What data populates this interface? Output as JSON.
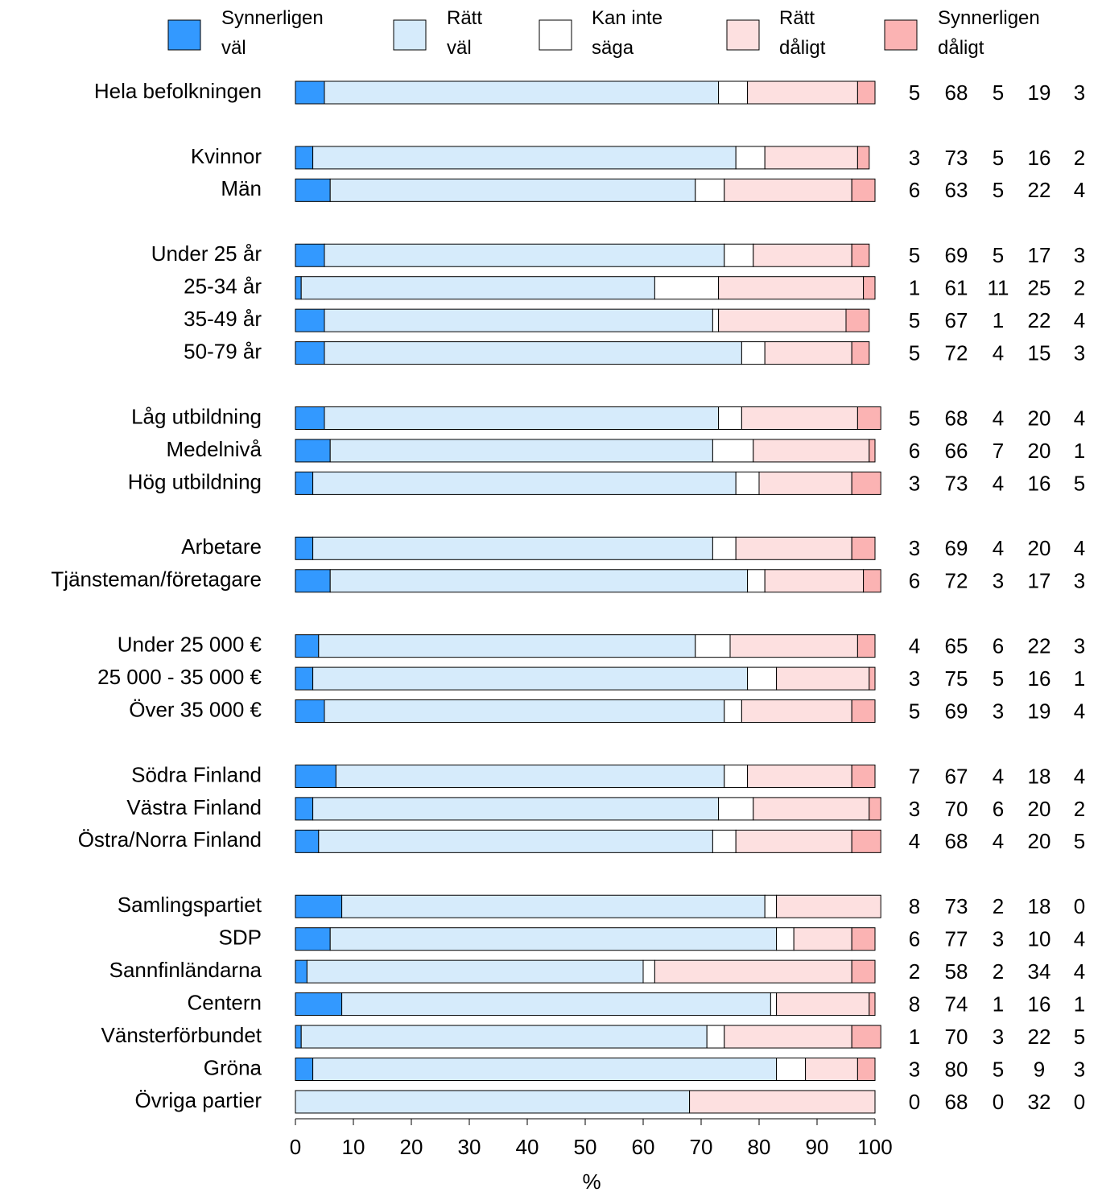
{
  "chart_data": {
    "type": "stacked-bar-horizontal",
    "categories": [
      "Hela befolkningen",
      null,
      "Kvinnor",
      "Män",
      null,
      "Under 25 år",
      "25-34 år",
      "35-49 år",
      "50-79 år",
      null,
      "Låg utbildning",
      "Medelnivå",
      "Hög utbildning",
      null,
      "Arbetare",
      "Tjänsteman/företagare",
      null,
      "Under 25 000 €",
      "25 000 - 35 000 €",
      "Över 35 000 €",
      null,
      "Södra Finland",
      "Västra Finland",
      "Östra/Norra Finland",
      null,
      "Samlingspartiet",
      "SDP",
      "Sannfinländarna",
      "Centern",
      "Vänsterförbundet",
      "Gröna",
      "Övriga partier"
    ],
    "series": [
      {
        "name": "Synnerligen väl",
        "color": "#3399ff",
        "values": [
          5,
          null,
          3,
          6,
          null,
          5,
          1,
          5,
          5,
          null,
          5,
          6,
          3,
          null,
          3,
          6,
          null,
          4,
          3,
          5,
          null,
          7,
          3,
          4,
          null,
          8,
          6,
          2,
          8,
          1,
          3,
          0
        ]
      },
      {
        "name": "Rätt väl",
        "color": "#d6ebfb",
        "values": [
          68,
          null,
          73,
          63,
          null,
          69,
          61,
          67,
          72,
          null,
          68,
          66,
          73,
          null,
          69,
          72,
          null,
          65,
          75,
          69,
          null,
          67,
          70,
          68,
          null,
          73,
          77,
          58,
          74,
          70,
          80,
          68
        ]
      },
      {
        "name": "Kan inte säga",
        "color": "#ffffff",
        "values": [
          5,
          null,
          5,
          5,
          null,
          5,
          11,
          1,
          4,
          null,
          4,
          7,
          4,
          null,
          4,
          3,
          null,
          6,
          5,
          3,
          null,
          4,
          6,
          4,
          null,
          2,
          3,
          2,
          1,
          3,
          5,
          0
        ]
      },
      {
        "name": "Rätt dåligt",
        "color": "#fde0e0",
        "values": [
          19,
          null,
          16,
          22,
          null,
          17,
          25,
          22,
          15,
          null,
          20,
          20,
          16,
          null,
          20,
          17,
          null,
          22,
          16,
          19,
          null,
          18,
          20,
          20,
          null,
          18,
          10,
          34,
          16,
          22,
          9,
          32
        ]
      },
      {
        "name": "Synnerligen dåligt",
        "color": "#fbb3b3",
        "values": [
          3,
          null,
          2,
          4,
          null,
          3,
          2,
          4,
          3,
          null,
          4,
          1,
          5,
          null,
          4,
          3,
          null,
          3,
          1,
          4,
          null,
          4,
          2,
          5,
          null,
          0,
          4,
          4,
          1,
          5,
          3,
          0
        ]
      }
    ],
    "xlim": [
      0,
      100
    ],
    "xticks": [
      0,
      10,
      20,
      30,
      40,
      50,
      60,
      70,
      80,
      90,
      100
    ],
    "xlabel": "%"
  }
}
